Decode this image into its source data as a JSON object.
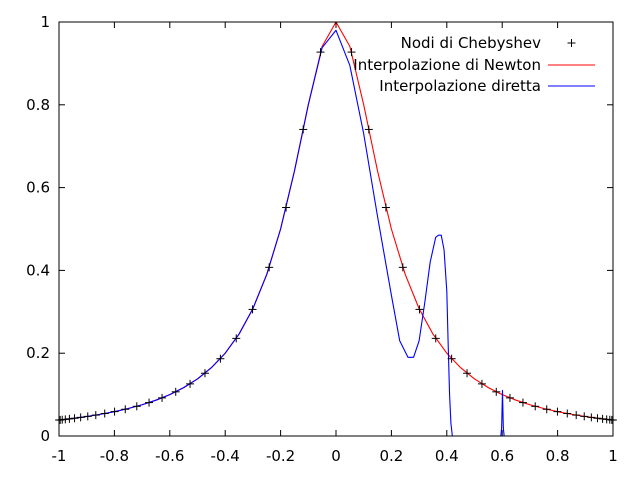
{
  "chart_data": {
    "type": "line",
    "title": "",
    "xlabel": "",
    "ylabel": "",
    "xlim": [
      -1,
      1
    ],
    "ylim": [
      0,
      1
    ],
    "x_ticks": [
      -1,
      -0.8,
      -0.6,
      -0.4,
      -0.2,
      0,
      0.2,
      0.4,
      0.6,
      0.8,
      1
    ],
    "x_tick_labels": [
      "-1",
      "-0.8",
      "-0.6",
      "-0.4",
      "-0.2",
      "0",
      "0.2",
      "0.4",
      "0.6",
      "0.8",
      "1"
    ],
    "y_ticks": [
      0,
      0.2,
      0.4,
      0.6,
      0.8,
      1
    ],
    "y_tick_labels": [
      "0",
      "0.2",
      "0.4",
      "0.6",
      "0.8",
      "1"
    ],
    "grid": false,
    "legend_position": "top-right",
    "series": [
      {
        "name": "Nodi di Chebyshev",
        "style": "points",
        "marker": "+",
        "color": "#000000",
        "x": [
          -0.9995,
          -0.9958,
          -0.9884,
          -0.9772,
          -0.9624,
          -0.9439,
          -0.9218,
          -0.8962,
          -0.8672,
          -0.8349,
          -0.7994,
          -0.7608,
          -0.7192,
          -0.6749,
          -0.628,
          -0.5786,
          -0.5269,
          -0.4731,
          -0.4174,
          -0.3601,
          -0.3013,
          -0.2412,
          -0.1802,
          -0.1184,
          -0.056,
          0.056,
          0.1184,
          0.1802,
          0.2412,
          0.3013,
          0.3601,
          0.4174,
          0.4731,
          0.5269,
          0.5786,
          0.628,
          0.6749,
          0.7192,
          0.7608,
          0.7994,
          0.8349,
          0.8672,
          0.8962,
          0.9218,
          0.9439,
          0.9624,
          0.9772,
          0.9884,
          0.9958,
          0.9995
        ],
        "y": [
          0.0385,
          0.0388,
          0.0393,
          0.0402,
          0.0414,
          0.0429,
          0.045,
          0.0474,
          0.0505,
          0.0543,
          0.0589,
          0.0646,
          0.0717,
          0.0807,
          0.0921,
          0.1067,
          0.1259,
          0.1516,
          0.1867,
          0.2358,
          0.3058,
          0.4074,
          0.5519,
          0.7405,
          0.9273,
          0.9273,
          0.7405,
          0.5519,
          0.4074,
          0.3058,
          0.2358,
          0.1867,
          0.1516,
          0.1259,
          0.1067,
          0.0921,
          0.0807,
          0.0717,
          0.0646,
          0.0589,
          0.0543,
          0.0505,
          0.0474,
          0.045,
          0.0429,
          0.0414,
          0.0402,
          0.0393,
          0.0388,
          0.0385
        ]
      },
      {
        "name": "Interpolazione di Newton",
        "style": "line",
        "color": "#ff0000",
        "x": [
          -1,
          -0.95,
          -0.9,
          -0.85,
          -0.8,
          -0.75,
          -0.7,
          -0.65,
          -0.6,
          -0.55,
          -0.5,
          -0.45,
          -0.4,
          -0.35,
          -0.3,
          -0.25,
          -0.2,
          -0.15,
          -0.1,
          -0.05,
          0,
          0.05,
          0.1,
          0.15,
          0.2,
          0.25,
          0.3,
          0.35,
          0.4,
          0.45,
          0.5,
          0.55,
          0.6,
          0.65,
          0.7,
          0.75,
          0.8,
          0.85,
          0.9,
          0.95,
          1
        ],
        "y": [
          0.0385,
          0.0424,
          0.0471,
          0.0525,
          0.0588,
          0.0664,
          0.0755,
          0.0865,
          0.1,
          0.1168,
          0.1379,
          0.1649,
          0.2,
          0.2462,
          0.3077,
          0.3902,
          0.5,
          0.64,
          0.8,
          0.9412,
          1.0,
          0.9412,
          0.8,
          0.64,
          0.5,
          0.3902,
          0.3077,
          0.2462,
          0.2,
          0.1649,
          0.1379,
          0.1168,
          0.1,
          0.0865,
          0.0755,
          0.0664,
          0.0588,
          0.0525,
          0.0471,
          0.0424,
          0.0385
        ]
      },
      {
        "name": "Interpolazione diretta",
        "style": "line",
        "color": "#0000ff",
        "x": [
          -1,
          -0.95,
          -0.9,
          -0.85,
          -0.8,
          -0.75,
          -0.7,
          -0.65,
          -0.6,
          -0.55,
          -0.5,
          -0.45,
          -0.4,
          -0.35,
          -0.3,
          -0.25,
          -0.2,
          -0.15,
          -0.1,
          -0.05,
          0,
          0.05,
          0.1,
          0.15,
          0.2,
          0.23,
          0.26,
          0.28,
          0.3,
          0.32,
          0.34,
          0.36,
          0.37,
          0.38,
          0.39,
          0.4,
          0.405,
          0.41,
          0.415,
          0.42
        ],
        "y": [
          0.0385,
          0.0424,
          0.0471,
          0.0525,
          0.0588,
          0.0664,
          0.0755,
          0.0865,
          0.1,
          0.1168,
          0.1379,
          0.1649,
          0.2,
          0.2462,
          0.3077,
          0.3902,
          0.5,
          0.64,
          0.8,
          0.938,
          0.98,
          0.895,
          0.73,
          0.53,
          0.34,
          0.23,
          0.19,
          0.19,
          0.23,
          0.32,
          0.42,
          0.48,
          0.485,
          0.485,
          0.45,
          0.35,
          0.22,
          0.1,
          0.03,
          0.0
        ],
        "extra_segments": [
          {
            "x": [
              0.595,
              0.598,
              0.601,
              0.604,
              0.607
            ],
            "y": [
              0.0,
              0.02,
              0.11,
              0.02,
              0.0
            ]
          }
        ]
      }
    ]
  }
}
